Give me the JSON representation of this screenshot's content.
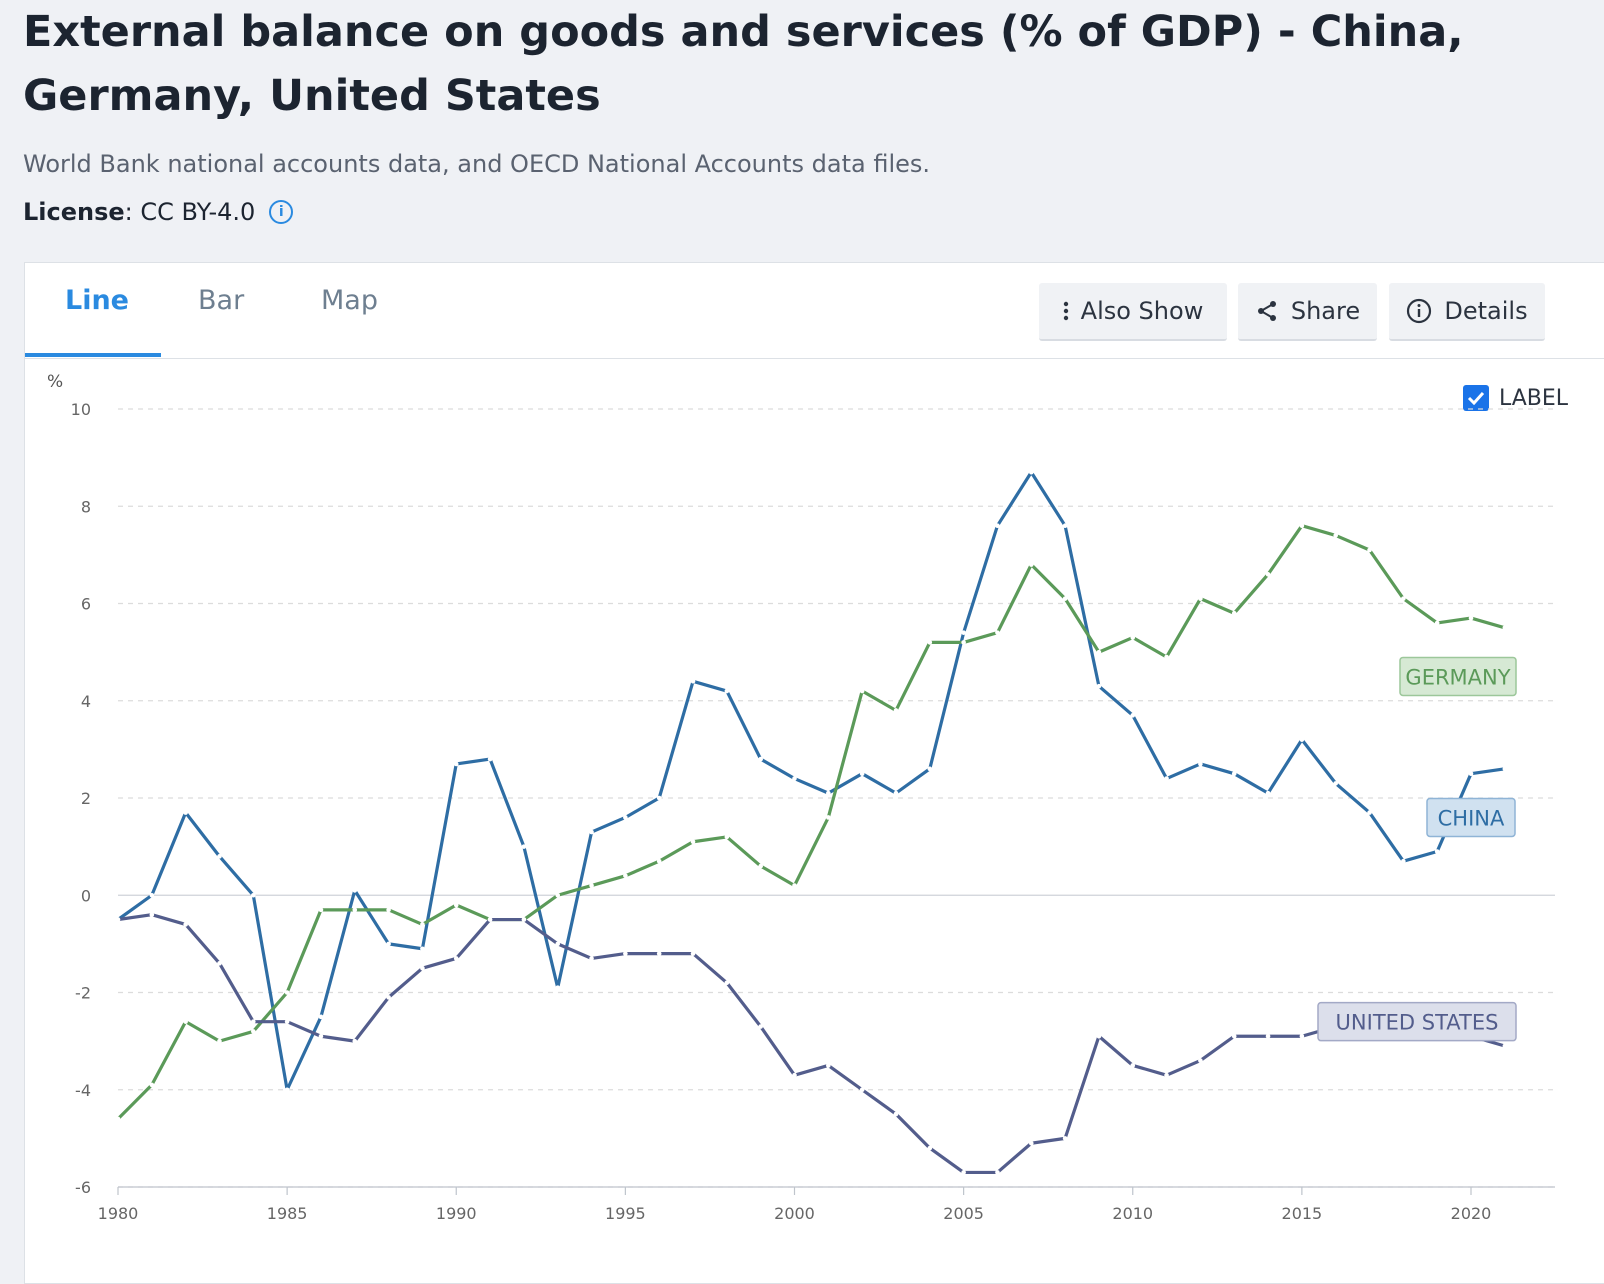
{
  "header": {
    "title": "External balance on goods and services (% of GDP) - China, Germany, United States",
    "source": "World Bank national accounts data, and OECD National Accounts data files.",
    "license_label": "License",
    "license_value": " : CC BY-4.0",
    "info_icon": "i"
  },
  "tabs": [
    {
      "label": "Line",
      "active": true
    },
    {
      "label": "Bar",
      "active": false
    },
    {
      "label": "Map",
      "active": false
    }
  ],
  "toolbar": {
    "also_show": "Also Show",
    "share": "Share",
    "details": "Details"
  },
  "label_toggle": {
    "text": "LABEL",
    "checked": true
  },
  "chart_data": {
    "type": "line",
    "ylabel": "%",
    "ylim": [
      -6,
      10
    ],
    "yticks": [
      -6,
      -4,
      -2,
      0,
      2,
      4,
      6,
      8,
      10
    ],
    "xlim": [
      1980,
      2021
    ],
    "xticks": [
      1980,
      1985,
      1990,
      1995,
      2000,
      2005,
      2010,
      2015,
      2020
    ],
    "grid": true,
    "legend": "inline labels at right",
    "x": [
      1980,
      1981,
      1982,
      1983,
      1984,
      1985,
      1986,
      1987,
      1988,
      1989,
      1990,
      1991,
      1992,
      1993,
      1994,
      1995,
      1996,
      1997,
      1998,
      1999,
      2000,
      2001,
      2002,
      2003,
      2004,
      2005,
      2006,
      2007,
      2008,
      2009,
      2010,
      2011,
      2012,
      2013,
      2014,
      2015,
      2016,
      2017,
      2018,
      2019,
      2020,
      2021
    ],
    "series": [
      {
        "name": "CHINA",
        "color": "#2e6da4",
        "values": [
          -0.5,
          0.0,
          1.7,
          0.8,
          0.0,
          -4.0,
          -2.5,
          0.1,
          -1.0,
          -1.1,
          2.7,
          2.8,
          1.0,
          -1.9,
          1.3,
          1.6,
          2.0,
          4.4,
          4.2,
          2.8,
          2.4,
          2.1,
          2.5,
          2.1,
          2.6,
          5.4,
          7.6,
          8.7,
          7.6,
          4.3,
          3.7,
          2.4,
          2.7,
          2.5,
          2.1,
          3.2,
          2.3,
          1.7,
          0.7,
          0.9,
          2.5,
          2.6
        ]
      },
      {
        "name": "GERMANY",
        "color": "#5b9a59",
        "values": [
          -4.6,
          -3.9,
          -2.6,
          -3.0,
          -2.8,
          -2.0,
          -0.3,
          -0.3,
          -0.3,
          -0.6,
          -0.2,
          -0.5,
          -0.5,
          0.0,
          0.2,
          0.4,
          0.7,
          1.1,
          1.2,
          0.6,
          0.2,
          1.6,
          4.2,
          3.8,
          5.2,
          5.2,
          5.4,
          6.8,
          6.1,
          5.0,
          5.3,
          4.9,
          6.1,
          5.8,
          6.6,
          7.6,
          7.4,
          7.1,
          6.1,
          5.6,
          5.7,
          5.5
        ]
      },
      {
        "name": "UNITED STATES",
        "color": "#535d8c",
        "values": [
          -0.5,
          -0.4,
          -0.6,
          -1.4,
          -2.6,
          -2.6,
          -2.9,
          -3.0,
          -2.1,
          -1.5,
          -1.3,
          -0.5,
          -0.5,
          -1.0,
          -1.3,
          -1.2,
          -1.2,
          -1.2,
          -1.8,
          -2.7,
          -3.7,
          -3.5,
          -4.0,
          -4.5,
          -5.2,
          -5.7,
          -5.7,
          -5.1,
          -5.0,
          -2.9,
          -3.5,
          -3.7,
          -3.4,
          -2.9,
          -2.9,
          -2.9,
          -2.7,
          -2.8,
          -2.9,
          -2.8,
          -2.9,
          -3.1
        ]
      }
    ],
    "labels": [
      {
        "text": "GERMANY",
        "color": "#5b9a59",
        "bg": "#d6e9d4",
        "border": "#9cc79a"
      },
      {
        "text": "CHINA",
        "color": "#2e6da4",
        "bg": "#d0e1f0",
        "border": "#8fb4d6"
      },
      {
        "text": "UNITED STATES",
        "color": "#535d8c",
        "bg": "#dcdfeb",
        "border": "#a3a9c6"
      }
    ]
  }
}
